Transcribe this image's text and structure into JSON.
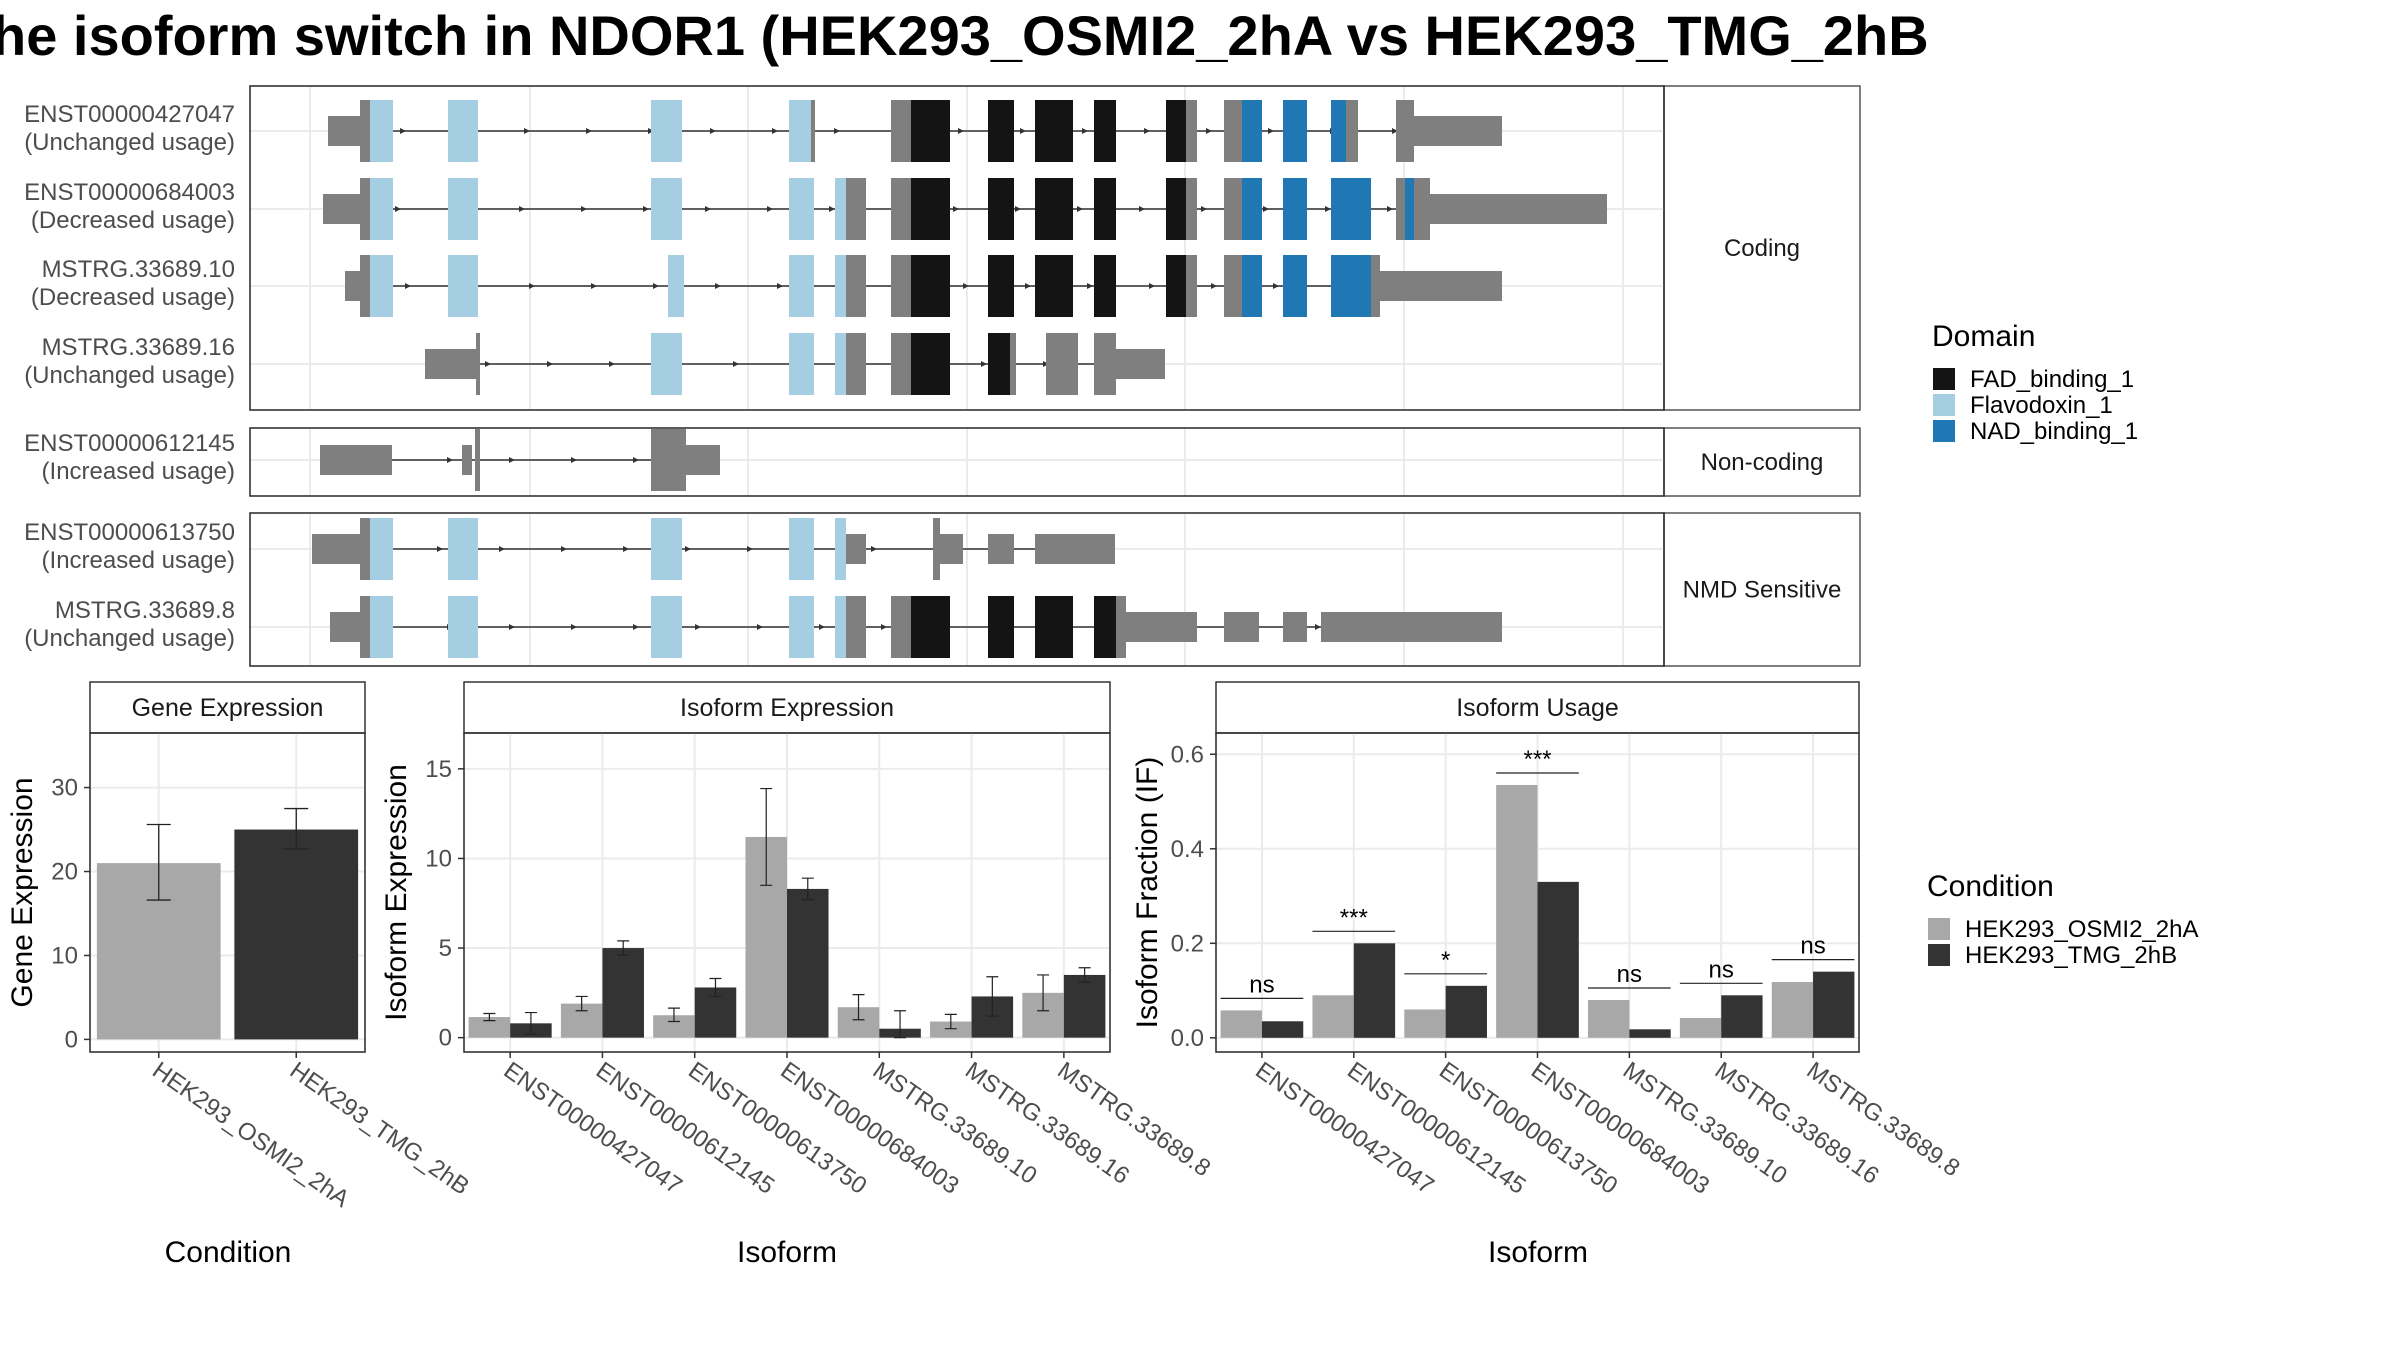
{
  "title": "he isoform switch in NDOR1 (HEK293_OSMI2_2hA vs HEK293_TMG_2hB",
  "colors": {
    "FAD_binding_1": "#141414",
    "Flavodoxin_1": "#a6cee3",
    "NAD_binding_1": "#1f78b4",
    "utr": "#7f7f7f",
    "cond1": "#a8a8a8",
    "cond2": "#333333"
  },
  "structure": {
    "facets": [
      {
        "label": "Coding",
        "rows": [
          {
            "id": "ENST00000427047",
            "usage": "(Unchanged usage)"
          },
          {
            "id": "ENST00000684003",
            "usage": "(Decreased usage)"
          },
          {
            "id": "MSTRG.33689.10",
            "usage": "(Decreased usage)"
          },
          {
            "id": "MSTRG.33689.16",
            "usage": "(Unchanged usage)"
          }
        ]
      },
      {
        "label": "Non-coding",
        "rows": [
          {
            "id": "ENST00000612145",
            "usage": "(Increased usage)"
          }
        ]
      },
      {
        "label": "NMD Sensitive",
        "rows": [
          {
            "id": "ENST00000613750",
            "usage": "(Increased usage)"
          },
          {
            "id": "MSTRG.33689.8",
            "usage": "(Unchanged usage)"
          }
        ]
      }
    ]
  },
  "legend_domain": {
    "title": "Domain",
    "items": [
      "FAD_binding_1",
      "Flavodoxin_1",
      "NAD_binding_1"
    ]
  },
  "legend_condition": {
    "title": "Condition",
    "items": [
      "HEK293_OSMI2_2hA",
      "HEK293_TMG_2hB"
    ]
  },
  "chart_data": [
    {
      "type": "bar",
      "title": "Gene Expression",
      "xlabel": "Condition",
      "ylabel": "Gene Expression",
      "categories": [
        "HEK293_OSMI2_2hA",
        "HEK293_TMG_2hB"
      ],
      "values": [
        21.0,
        25.0
      ],
      "error_low": [
        16.6,
        22.7
      ],
      "error_high": [
        25.6,
        27.5
      ],
      "yticks": [
        0,
        10,
        20,
        30
      ],
      "ylim": [
        -1.5,
        36.5
      ]
    },
    {
      "type": "bar",
      "title": "Isoform Expression",
      "xlabel": "Isoform",
      "ylabel": "Isoform Expression",
      "categories": [
        "ENST00000427047",
        "ENST00000612145",
        "ENST00000613750",
        "ENST00000684003",
        "MSTRG.33689.10",
        "MSTRG.33689.16",
        "MSTRG.33689.8"
      ],
      "series": [
        {
          "name": "HEK293_OSMI2_2hA",
          "values": [
            1.15,
            1.9,
            1.25,
            11.2,
            1.7,
            0.9,
            2.5
          ],
          "low": [
            0.95,
            1.5,
            0.9,
            8.5,
            1.0,
            0.5,
            1.5
          ],
          "high": [
            1.35,
            2.3,
            1.65,
            13.9,
            2.4,
            1.3,
            3.5
          ]
        },
        {
          "name": "HEK293_TMG_2hB",
          "values": [
            0.8,
            5.0,
            2.8,
            8.3,
            0.5,
            2.3,
            3.5
          ],
          "low": [
            0.2,
            4.6,
            2.3,
            7.7,
            0.0,
            1.2,
            3.1
          ],
          "high": [
            1.4,
            5.4,
            3.3,
            8.9,
            1.5,
            3.4,
            3.9
          ]
        }
      ],
      "yticks": [
        0,
        5,
        10,
        15
      ],
      "ylim": [
        -0.8,
        17.0
      ]
    },
    {
      "type": "bar",
      "title": "Isoform Usage",
      "xlabel": "Isoform",
      "ylabel": "Isoform Fraction (IF)",
      "categories": [
        "ENST00000427047",
        "ENST00000612145",
        "ENST00000613750",
        "ENST00000684003",
        "MSTRG.33689.10",
        "MSTRG.33689.16",
        "MSTRG.33689.8"
      ],
      "series": [
        {
          "name": "HEK293_OSMI2_2hA",
          "values": [
            0.058,
            0.09,
            0.06,
            0.535,
            0.08,
            0.042,
            0.118
          ]
        },
        {
          "name": "HEK293_TMG_2hB",
          "values": [
            0.035,
            0.2,
            0.11,
            0.33,
            0.018,
            0.09,
            0.14
          ]
        }
      ],
      "significance": [
        "ns",
        "***",
        "*",
        "***",
        "ns",
        "ns",
        "ns"
      ],
      "yticks": [
        0.0,
        0.2,
        0.4,
        0.6
      ],
      "yticklabels": [
        "0.0",
        "0.2",
        "0.4",
        "0.6"
      ],
      "ylim": [
        -0.03,
        0.645
      ]
    }
  ]
}
